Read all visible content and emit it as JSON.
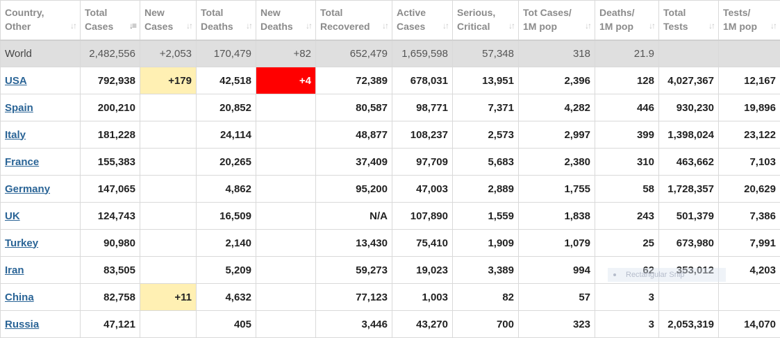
{
  "headers": [
    {
      "label": "Country,\nOther",
      "sort": "both"
    },
    {
      "label": "Total\nCases",
      "sort": "desc"
    },
    {
      "label": "New\nCases",
      "sort": "both"
    },
    {
      "label": "Total\nDeaths",
      "sort": "both"
    },
    {
      "label": "New\nDeaths",
      "sort": "both"
    },
    {
      "label": "Total\nRecovered",
      "sort": "both"
    },
    {
      "label": "Active\nCases",
      "sort": "both"
    },
    {
      "label": "Serious,\nCritical",
      "sort": "both"
    },
    {
      "label": "Tot Cases/\n1M pop",
      "sort": "both"
    },
    {
      "label": "Deaths/\n1M pop",
      "sort": "both"
    },
    {
      "label": "Total\nTests",
      "sort": "both"
    },
    {
      "label": "Tests/\n1M pop",
      "sort": "both"
    }
  ],
  "world": [
    "World",
    "2,482,556",
    "+2,053",
    "170,479",
    "+82",
    "652,479",
    "1,659,598",
    "57,348",
    "318",
    "21.9",
    "",
    ""
  ],
  "rows": [
    [
      "USA",
      "792,938",
      "+179",
      "42,518",
      "+4",
      "72,389",
      "678,031",
      "13,951",
      "2,396",
      "128",
      "4,027,367",
      "12,167"
    ],
    [
      "Spain",
      "200,210",
      "",
      "20,852",
      "",
      "80,587",
      "98,771",
      "7,371",
      "4,282",
      "446",
      "930,230",
      "19,896"
    ],
    [
      "Italy",
      "181,228",
      "",
      "24,114",
      "",
      "48,877",
      "108,237",
      "2,573",
      "2,997",
      "399",
      "1,398,024",
      "23,122"
    ],
    [
      "France",
      "155,383",
      "",
      "20,265",
      "",
      "37,409",
      "97,709",
      "5,683",
      "2,380",
      "310",
      "463,662",
      "7,103"
    ],
    [
      "Germany",
      "147,065",
      "",
      "4,862",
      "",
      "95,200",
      "47,003",
      "2,889",
      "1,755",
      "58",
      "1,728,357",
      "20,629"
    ],
    [
      "UK",
      "124,743",
      "",
      "16,509",
      "",
      "N/A",
      "107,890",
      "1,559",
      "1,838",
      "243",
      "501,379",
      "7,386"
    ],
    [
      "Turkey",
      "90,980",
      "",
      "2,140",
      "",
      "13,430",
      "75,410",
      "1,909",
      "1,079",
      "25",
      "673,980",
      "7,991"
    ],
    [
      "Iran",
      "83,505",
      "",
      "5,209",
      "",
      "59,273",
      "19,023",
      "3,389",
      "994",
      "62",
      "353,012",
      "4,203"
    ],
    [
      "China",
      "82,758",
      "+11",
      "4,632",
      "",
      "77,123",
      "1,003",
      "82",
      "57",
      "3",
      "",
      ""
    ],
    [
      "Russia",
      "47,121",
      "",
      "405",
      "",
      "3,446",
      "43,270",
      "700",
      "323",
      "3",
      "2,053,319",
      "14,070"
    ]
  ],
  "overlay_label": "Rectangular Snip",
  "colors": {
    "new_cases_bg": "#fff0b3",
    "new_deaths_bg": "#ff0000",
    "link": "#2a6496",
    "world_bg": "#dfdfdf"
  }
}
